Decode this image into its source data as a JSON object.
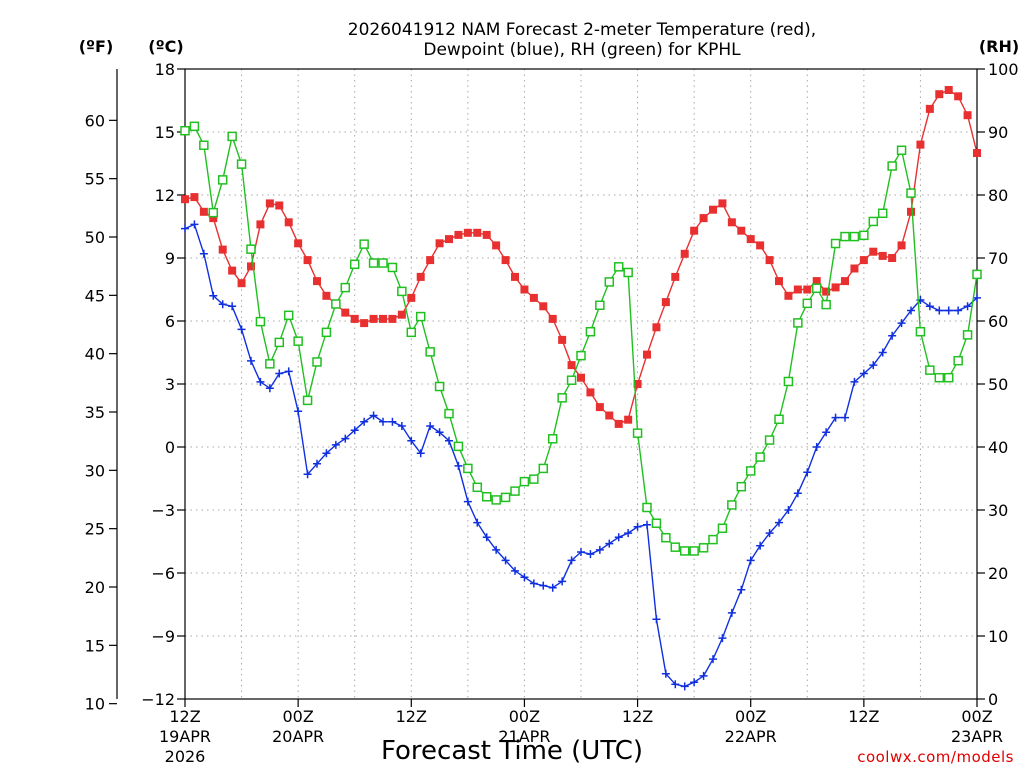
{
  "chart_data": {
    "type": "line",
    "title_line1": "2026041912 NAM Forecast 2-meter Temperature (red),",
    "title_line2": "Dewpoint (blue), RH (green) for KPHL",
    "unit_labels": {
      "f": "(ºF)",
      "c": "(ºC)",
      "rh": "(RH)"
    },
    "xlabel": "Forecast Time (UTC)",
    "credit": "coolwx.com/models",
    "x_hours_range": [
      0,
      84
    ],
    "x_ticks": [
      {
        "hour": 0,
        "time": "12Z",
        "date": "19APR",
        "year": "2026"
      },
      {
        "hour": 12,
        "time": "00Z",
        "date": "20APR",
        "year": ""
      },
      {
        "hour": 24,
        "time": "12Z",
        "date": "",
        "year": ""
      },
      {
        "hour": 36,
        "time": "00Z",
        "date": "21APR",
        "year": ""
      },
      {
        "hour": 48,
        "time": "12Z",
        "date": "",
        "year": ""
      },
      {
        "hour": 60,
        "time": "00Z",
        "date": "22APR",
        "year": ""
      },
      {
        "hour": 72,
        "time": "12Z",
        "date": "",
        "year": ""
      },
      {
        "hour": 84,
        "time": "00Z",
        "date": "23APR",
        "year": ""
      }
    ],
    "x_grid_hours": [
      6,
      12,
      18,
      24,
      30,
      36,
      42,
      48,
      54,
      60,
      66,
      72,
      78
    ],
    "celsius_range": [
      -12,
      18
    ],
    "celsius_ticks": [
      "18",
      "15",
      "12",
      "9",
      "6",
      "3",
      "0",
      "−3",
      "−6",
      "−9",
      "−12"
    ],
    "fahrenheit_ticks": [
      "60",
      "55",
      "50",
      "45",
      "40",
      "35",
      "30",
      "25",
      "20",
      "15",
      "10"
    ],
    "rh_range": [
      0,
      100
    ],
    "rh_ticks": [
      "100",
      "90",
      "80",
      "70",
      "60",
      "50",
      "40",
      "30",
      "20",
      "10",
      "0"
    ],
    "series": [
      {
        "name": "2-meter Temperature (°C)",
        "color": "#e83030",
        "marker": "filled-square",
        "axis": "celsius",
        "hours": [
          0,
          1,
          2,
          3,
          4,
          5,
          6,
          7,
          8,
          9,
          10,
          11,
          12,
          13,
          14,
          15,
          16,
          17,
          18,
          19,
          20,
          21,
          22,
          23,
          24,
          25,
          26,
          27,
          28,
          29,
          30,
          31,
          32,
          33,
          34,
          35,
          36,
          37,
          38,
          39,
          40,
          41,
          42,
          43,
          44,
          45,
          46,
          47,
          48,
          49,
          50,
          51,
          52,
          53,
          54,
          55,
          56,
          57,
          58,
          59,
          60,
          61,
          62,
          63,
          64,
          65,
          66,
          67,
          68,
          69,
          70,
          71,
          72,
          73,
          74,
          75,
          76,
          77,
          78,
          79,
          80,
          81,
          82,
          83,
          84
        ],
        "values": [
          11.8,
          11.9,
          11.2,
          10.9,
          9.4,
          8.4,
          7.8,
          8.6,
          10.6,
          11.6,
          11.5,
          10.7,
          9.7,
          8.9,
          7.9,
          7.2,
          6.8,
          6.4,
          6.1,
          5.9,
          6.1,
          6.1,
          6.1,
          6.3,
          7.1,
          8.1,
          8.9,
          9.7,
          9.9,
          10.1,
          10.2,
          10.2,
          10.1,
          9.6,
          8.9,
          8.1,
          7.5,
          7.1,
          6.7,
          6.1,
          5.1,
          3.9,
          3.3,
          2.6,
          1.9,
          1.5,
          1.1,
          1.3,
          3.0,
          4.4,
          5.7,
          6.9,
          8.1,
          9.2,
          10.3,
          10.9,
          11.3,
          11.6,
          10.7,
          10.3,
          9.9,
          9.6,
          8.9,
          7.9,
          7.2,
          7.5,
          7.5,
          7.9,
          7.4,
          7.6,
          7.9,
          8.5,
          8.9,
          9.3,
          9.1,
          9.0,
          9.6,
          11.2,
          14.4,
          16.1,
          16.8,
          17.0,
          16.7,
          15.8,
          14.0
        ]
      },
      {
        "name": "Dewpoint (°C)",
        "color": "#1030e0",
        "marker": "plus",
        "axis": "celsius",
        "hours": [
          0,
          1,
          2,
          3,
          4,
          5,
          6,
          7,
          8,
          9,
          10,
          11,
          12,
          13,
          14,
          15,
          16,
          17,
          18,
          19,
          20,
          21,
          22,
          23,
          24,
          25,
          26,
          27,
          28,
          29,
          30,
          31,
          32,
          33,
          34,
          35,
          36,
          37,
          38,
          39,
          40,
          41,
          42,
          43,
          44,
          45,
          46,
          47,
          48,
          49,
          50,
          51,
          52,
          53,
          54,
          55,
          56,
          57,
          58,
          59,
          60,
          61,
          62,
          63,
          64,
          65,
          66,
          67,
          68,
          69,
          70,
          71,
          72,
          73,
          74,
          75,
          76,
          77,
          78,
          79,
          80,
          81,
          82,
          83,
          84
        ],
        "values": [
          10.4,
          10.6,
          9.2,
          7.2,
          6.8,
          6.7,
          5.6,
          4.1,
          3.1,
          2.8,
          3.5,
          3.6,
          1.7,
          -1.3,
          -0.8,
          -0.3,
          0.1,
          0.4,
          0.8,
          1.2,
          1.5,
          1.2,
          1.2,
          1.0,
          0.3,
          -0.3,
          1.0,
          0.7,
          0.3,
          -0.9,
          -2.6,
          -3.6,
          -4.3,
          -4.9,
          -5.4,
          -5.9,
          -6.2,
          -6.5,
          -6.6,
          -6.7,
          -6.4,
          -5.4,
          -5.0,
          -5.1,
          -4.9,
          -4.6,
          -4.3,
          -4.1,
          -3.8,
          -3.7,
          -8.2,
          -10.8,
          -11.3,
          -11.4,
          -11.2,
          -10.9,
          -10.1,
          -9.1,
          -7.9,
          -6.8,
          -5.4,
          -4.7,
          -4.1,
          -3.6,
          -3.0,
          -2.2,
          -1.2,
          0.0,
          0.7,
          1.4,
          1.4,
          3.1,
          3.5,
          3.9,
          4.5,
          5.3,
          5.9,
          6.5,
          7.0,
          6.7,
          6.5,
          6.5,
          6.5,
          6.7,
          7.1
        ]
      },
      {
        "name": "Relative Humidity (%)",
        "color": "#20c020",
        "marker": "open-square",
        "axis": "rh",
        "hours": [
          0,
          1,
          2,
          3,
          4,
          5,
          6,
          7,
          8,
          9,
          10,
          11,
          12,
          13,
          14,
          15,
          16,
          17,
          18,
          19,
          20,
          21,
          22,
          23,
          24,
          25,
          26,
          27,
          28,
          29,
          30,
          31,
          32,
          33,
          34,
          35,
          36,
          37,
          38,
          39,
          40,
          41,
          42,
          43,
          44,
          45,
          46,
          47,
          48,
          49,
          50,
          51,
          52,
          53,
          54,
          55,
          56,
          57,
          58,
          59,
          60,
          61,
          62,
          63,
          64,
          65,
          66,
          67,
          68,
          69,
          70,
          71,
          72,
          73,
          74,
          75,
          76,
          77,
          78,
          79,
          80,
          81,
          82,
          83,
          84
        ],
        "values": [
          90.2,
          90.9,
          87.9,
          77.2,
          82.4,
          89.3,
          84.9,
          71.4,
          59.9,
          53.2,
          56.6,
          60.9,
          56.8,
          47.4,
          53.5,
          58.2,
          62.7,
          65.3,
          69.0,
          72.2,
          69.2,
          69.2,
          68.5,
          64.7,
          58.2,
          60.7,
          55.1,
          49.6,
          45.3,
          40.1,
          36.6,
          33.6,
          32.1,
          31.6,
          32.0,
          33.0,
          34.5,
          34.9,
          36.6,
          41.3,
          47.8,
          50.6,
          54.5,
          58.3,
          62.5,
          66.2,
          68.6,
          67.7,
          42.2,
          30.4,
          27.9,
          25.6,
          24.1,
          23.5,
          23.5,
          24.0,
          25.3,
          27.1,
          30.8,
          33.7,
          36.2,
          38.4,
          41.1,
          44.4,
          50.4,
          59.7,
          62.8,
          65.2,
          62.6,
          72.3,
          73.4,
          73.4,
          73.6,
          75.8,
          77.1,
          84.6,
          87.1,
          80.3,
          58.3,
          52.2,
          51.0,
          51.0,
          53.7,
          57.8,
          67.4
        ]
      }
    ]
  }
}
